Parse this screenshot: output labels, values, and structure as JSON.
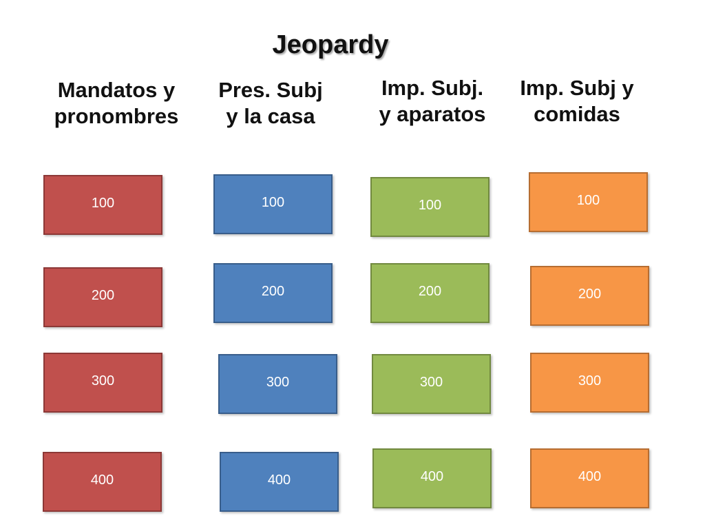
{
  "title": "Jeopardy",
  "categories": [
    {
      "line1": "Mandatos y",
      "line2": "pronombres"
    },
    {
      "line1": "Pres. Subj",
      "line2": "y la casa"
    },
    {
      "line1": "Imp. Subj.",
      "line2": "y aparatos"
    },
    {
      "line1": "Imp. Subj y",
      "line2": "comidas"
    }
  ],
  "columns": [
    {
      "color": "#c0504d",
      "values": [
        "100",
        "200",
        "300",
        "400"
      ]
    },
    {
      "color": "#4f81bd",
      "values": [
        "100",
        "200",
        "300",
        "400"
      ]
    },
    {
      "color": "#9bbb59",
      "values": [
        "100",
        "200",
        "300",
        "400"
      ]
    },
    {
      "color": "#f79646",
      "values": [
        "100",
        "200",
        "300",
        "400"
      ]
    }
  ]
}
